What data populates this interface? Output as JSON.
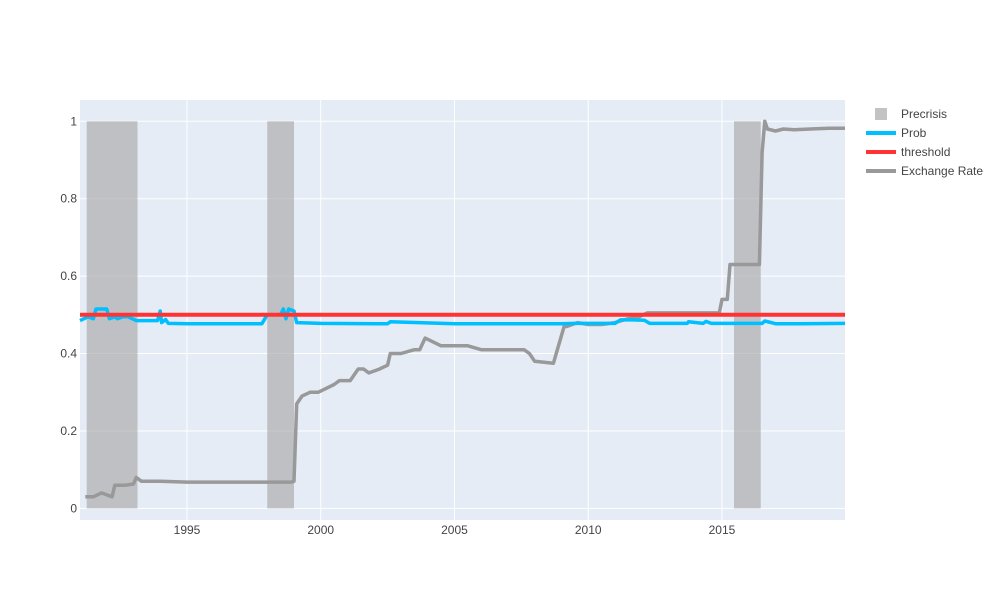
{
  "chart_data": {
    "type": "line",
    "title": "",
    "xlabel": "",
    "ylabel": "",
    "xlim": [
      1991.0,
      2019.6
    ],
    "ylim": [
      -0.03,
      1.055
    ],
    "x_ticks": [
      1995,
      2000,
      2005,
      2010,
      2015
    ],
    "y_ticks": [
      0,
      0.2,
      0.4,
      0.6,
      0.8,
      1
    ],
    "grid": true,
    "legend_position": "top-right",
    "colors": {
      "plot_background": "#e5ecf6",
      "grid": "#ffffff",
      "precrisis": "#a9a9a9",
      "prob": "#00bfff",
      "threshold": "#ff3333",
      "exchange_rate": "#999999"
    },
    "precrisis_periods": [
      [
        1991.25,
        1993.15
      ],
      [
        1998.0,
        1999.0
      ],
      [
        2015.45,
        2016.45
      ]
    ],
    "series": [
      {
        "name": "Exchange Rate",
        "x": [
          1991.2,
          1991.5,
          1991.8,
          1992.2,
          1992.3,
          1992.7,
          1993.0,
          1993.1,
          1993.3,
          1994.0,
          1995.0,
          1997.0,
          1998.9,
          1999.0,
          1999.1,
          1999.3,
          1999.6,
          1999.9,
          2000.2,
          2000.5,
          2000.7,
          2001.1,
          2001.4,
          2001.6,
          2001.8,
          2002.0,
          2002.2,
          2002.5,
          2002.6,
          2003.0,
          2003.5,
          2003.7,
          2003.9,
          2004.2,
          2004.5,
          2005.0,
          2005.5,
          2006.0,
          2006.5,
          2007.0,
          2007.6,
          2007.8,
          2008.0,
          2008.7,
          2009.1,
          2009.2,
          2009.6,
          2010.0,
          2010.5,
          2011.0,
          2011.5,
          2011.9,
          2012.2,
          2012.8,
          2013.5,
          2014.0,
          2014.5,
          2014.9,
          2015.0,
          2015.2,
          2015.3,
          2016.4,
          2016.5,
          2016.6,
          2016.7,
          2017.0,
          2017.3,
          2017.7,
          2018.3,
          2019.0,
          2019.6
        ],
        "values": [
          0.03,
          0.03,
          0.04,
          0.03,
          0.06,
          0.06,
          0.063,
          0.08,
          0.07,
          0.07,
          0.068,
          0.068,
          0.068,
          0.07,
          0.27,
          0.29,
          0.3,
          0.3,
          0.31,
          0.32,
          0.33,
          0.33,
          0.36,
          0.36,
          0.35,
          0.355,
          0.36,
          0.37,
          0.4,
          0.4,
          0.41,
          0.41,
          0.44,
          0.43,
          0.42,
          0.42,
          0.42,
          0.41,
          0.41,
          0.41,
          0.41,
          0.4,
          0.38,
          0.375,
          0.47,
          0.47,
          0.48,
          0.475,
          0.475,
          0.48,
          0.49,
          0.495,
          0.505,
          0.505,
          0.505,
          0.505,
          0.505,
          0.505,
          0.54,
          0.54,
          0.63,
          0.63,
          0.92,
          1.0,
          0.98,
          0.975,
          0.98,
          0.978,
          0.98,
          0.982,
          0.982
        ]
      },
      {
        "name": "Prob",
        "x": [
          1991.0,
          1991.3,
          1991.5,
          1991.6,
          1991.7,
          1992.0,
          1992.1,
          1992.3,
          1992.4,
          1992.6,
          1992.8,
          1993.1,
          1993.5,
          1993.9,
          1994.0,
          1994.05,
          1994.2,
          1994.3,
          1995.0,
          1997.0,
          1997.8,
          1998.0,
          1998.5,
          1998.6,
          1998.7,
          1998.8,
          1999.0,
          1999.1,
          2000.0,
          2002.0,
          2002.5,
          2002.6,
          2005.0,
          2009.0,
          2009.5,
          2010.0,
          2010.5,
          2011.0,
          2011.2,
          2011.7,
          2012.1,
          2012.3,
          2013.0,
          2013.7,
          2013.75,
          2014.3,
          2014.4,
          2014.6,
          2015.0,
          2016.0,
          2016.5,
          2016.6,
          2017.0,
          2018.0,
          2019.6
        ],
        "values": [
          0.485,
          0.495,
          0.49,
          0.515,
          0.515,
          0.515,
          0.49,
          0.495,
          0.49,
          0.495,
          0.495,
          0.485,
          0.485,
          0.485,
          0.51,
          0.48,
          0.488,
          0.478,
          0.477,
          0.477,
          0.477,
          0.5,
          0.5,
          0.515,
          0.49,
          0.515,
          0.51,
          0.48,
          0.478,
          0.477,
          0.477,
          0.482,
          0.477,
          0.477,
          0.478,
          0.478,
          0.478,
          0.478,
          0.487,
          0.487,
          0.486,
          0.478,
          0.478,
          0.478,
          0.482,
          0.478,
          0.483,
          0.478,
          0.478,
          0.478,
          0.478,
          0.484,
          0.477,
          0.477,
          0.478
        ]
      },
      {
        "name": "threshold",
        "x": [
          1991.0,
          2019.6
        ],
        "values": [
          0.5,
          0.5
        ]
      }
    ],
    "legend": [
      {
        "label": "Precrisis",
        "kind": "box",
        "color_key": "precrisis"
      },
      {
        "label": "Prob",
        "kind": "line",
        "color_key": "prob"
      },
      {
        "label": "threshold",
        "kind": "line",
        "color_key": "threshold"
      },
      {
        "label": "Exchange Rate",
        "kind": "line",
        "color_key": "exchange_rate"
      }
    ]
  }
}
